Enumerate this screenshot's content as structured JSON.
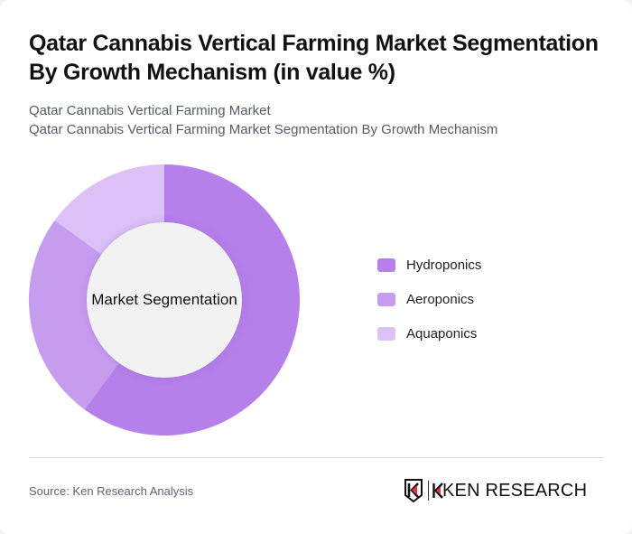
{
  "header": {
    "title": "Qatar Cannabis Vertical Farming Market Segmentation By Growth Mechanism (in value %)",
    "subtitle_line1": "Qatar Cannabis Vertical Farming Market",
    "subtitle_line2": "Qatar Cannabis Vertical Farming Market Segmentation By Growth Mechanism"
  },
  "chart": {
    "center_label": "Market Segmentation"
  },
  "legend": [
    {
      "label": "Hydroponics",
      "color": "#b580ea"
    },
    {
      "label": "Aeroponics",
      "color": "#c69cef"
    },
    {
      "label": "Aquaponics",
      "color": "#dbc1f6"
    }
  ],
  "footer": {
    "source": "Source: Ken Research Analysis",
    "logo_text": "KEN RESEARCH"
  },
  "chart_data": {
    "type": "pie",
    "subtype": "donut",
    "title": "Qatar Cannabis Vertical Farming Market Segmentation By Growth Mechanism (in value %)",
    "center_label": "Market Segmentation",
    "categories": [
      "Hydroponics",
      "Aeroponics",
      "Aquaponics"
    ],
    "values": [
      60,
      25,
      15
    ],
    "colors": [
      "#b580ea",
      "#c69cef",
      "#dbc1f6"
    ],
    "unit": "%",
    "legend_position": "right",
    "start_angle": "12 o'clock, clockwise"
  }
}
